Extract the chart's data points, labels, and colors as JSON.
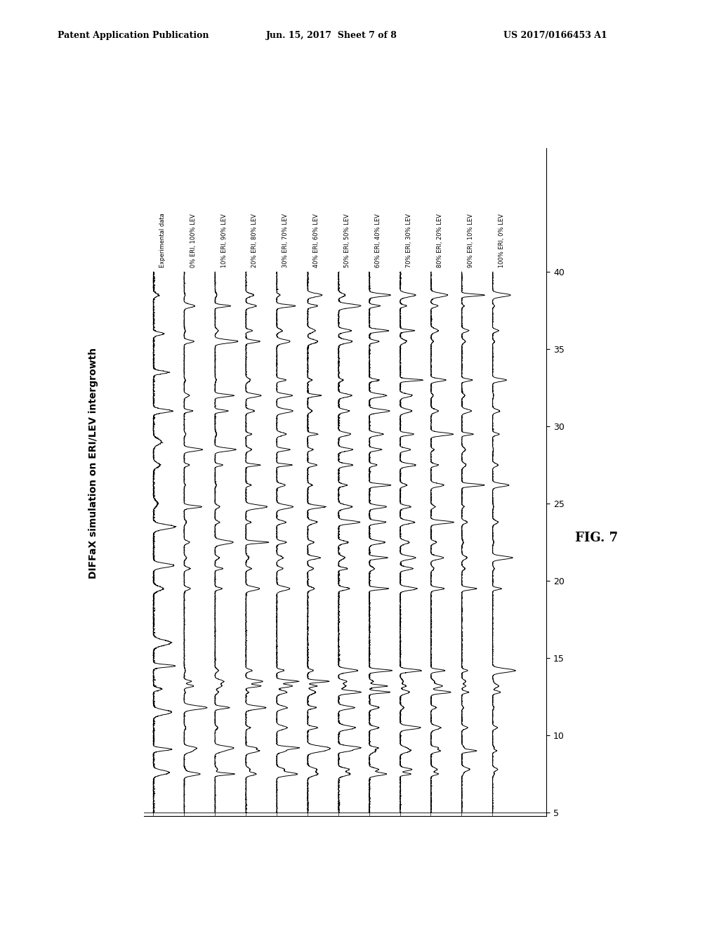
{
  "title_left": "DIFFaX simulation on ERI/LEV intergrowth",
  "figure_label": "FIG. 7",
  "patent_header_left": "Patent Application Publication",
  "patent_header_mid": "Jun. 15, 2017  Sheet 7 of 8",
  "patent_header_right": "US 2017/0166453 A1",
  "y_min": 5,
  "y_max": 40,
  "y_ticks": [
    5,
    10,
    15,
    20,
    25,
    30,
    35,
    40
  ],
  "series_labels": [
    "Experimental data",
    "0% ERI, 100% LEV",
    "10% ERI, 90% LEV",
    "20% ERI, 80% LEV",
    "30% ERI, 70% LEV",
    "40% ERI, 60% LEV",
    "50% ERI, 50% LEV",
    "60% ERI, 40% LEV",
    "70% ERI, 30% LEV",
    "80% ERI, 20% LEV",
    "90% ERI, 10% LEV",
    "100% ERI, 0% LEV"
  ],
  "n_series": 12,
  "background_color": "#ffffff",
  "line_color": "#000000",
  "line_width": 0.7
}
